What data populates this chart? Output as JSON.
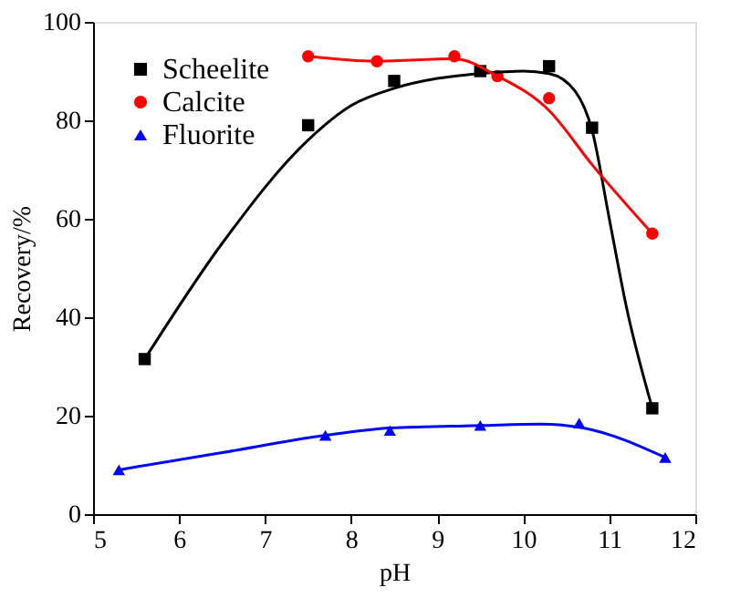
{
  "chart_data": {
    "type": "scatter",
    "xlabel": "pH",
    "ylabel": "Recovery/%",
    "xlim": [
      5,
      12
    ],
    "xticks": [
      5,
      6,
      7,
      8,
      9,
      10,
      11,
      12
    ],
    "ylim": [
      0,
      100
    ],
    "yticks": [
      0,
      20,
      40,
      60,
      80,
      100
    ],
    "grid": false,
    "legend": "top left",
    "series": [
      {
        "name": "Scheelite",
        "color": "#000000",
        "marker": "square",
        "x": [
          5.6,
          7.5,
          8.5,
          9.5,
          10.3,
          10.8,
          11.5
        ],
        "values": [
          31.5,
          79,
          88,
          90,
          91,
          78.5,
          21.5
        ]
      },
      {
        "name": "Calcite",
        "color": "#ff0000",
        "marker": "circle",
        "x": [
          7.5,
          8.3,
          9.2,
          9.7,
          10.3,
          11.5
        ],
        "values": [
          93,
          92,
          93,
          89,
          84.5,
          57
        ]
      },
      {
        "name": "Fluorite",
        "color": "#0000ff",
        "marker": "triangle",
        "x": [
          5.3,
          7.7,
          8.45,
          9.5,
          10.65,
          11.65
        ],
        "values": [
          9,
          16,
          17,
          18,
          18.5,
          11.5
        ]
      },
      {
        "color": "#000000",
        "type": "line",
        "x": [
          5.6,
          6.5,
          7.5,
          8,
          8.5,
          9,
          9.5,
          10,
          10.3,
          10.6,
          10.8,
          11,
          11.2,
          11.5
        ],
        "values": [
          31.5,
          55,
          76,
          83,
          86.5,
          88.5,
          89.5,
          90,
          89.5,
          86,
          78,
          60,
          42,
          21.5
        ]
      },
      {
        "color": "#ff0000",
        "type": "line",
        "x": [
          7.5,
          8.3,
          9.2,
          9.7,
          10.3,
          10.8,
          11.5
        ],
        "values": [
          93,
          92,
          92.5,
          89,
          82,
          71,
          57
        ]
      },
      {
        "color": "#0000ff",
        "type": "line",
        "x": [
          5.3,
          6.5,
          7.7,
          8.45,
          9.5,
          10.2,
          10.7,
          11.65
        ],
        "values": [
          9,
          12.5,
          16,
          17.5,
          18,
          18.3,
          17.5,
          11.5
        ]
      }
    ]
  }
}
